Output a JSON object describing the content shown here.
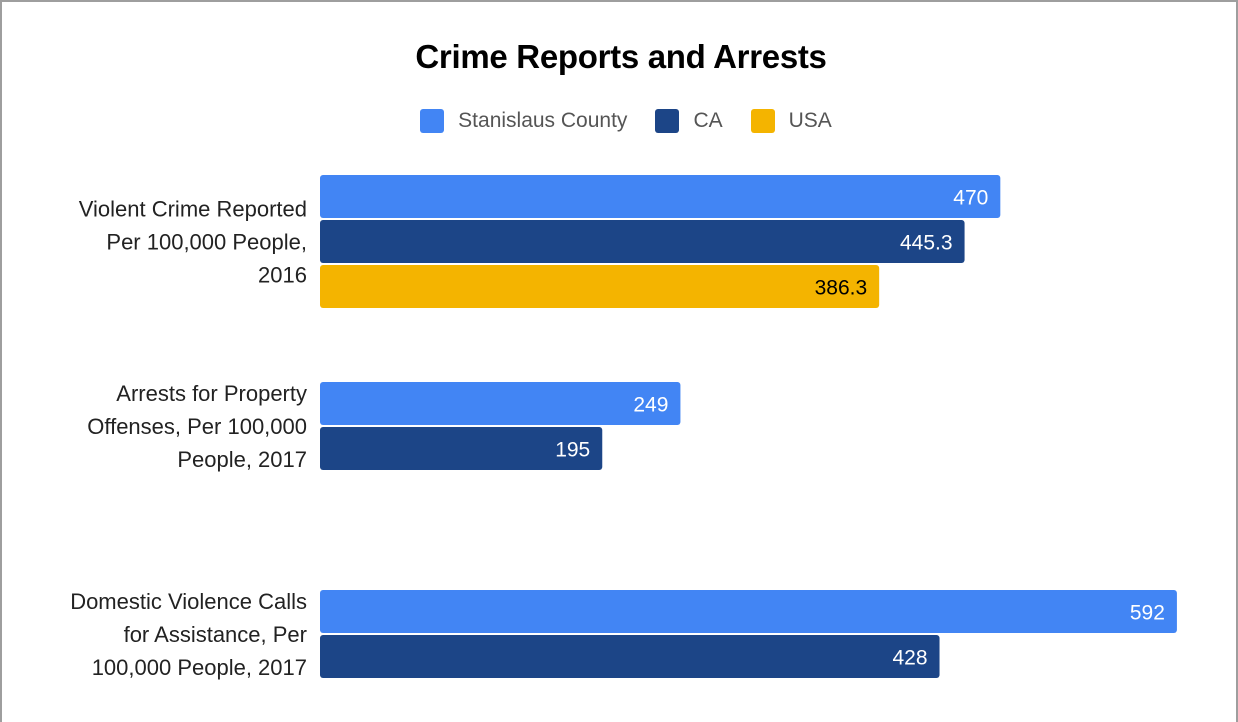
{
  "chart_data": {
    "type": "bar",
    "orientation": "horizontal",
    "title": "Crime Reports and Arrests",
    "legend_position": "top",
    "grid": false,
    "xlim": [
      0,
      600
    ],
    "categories": [
      [
        "Violent Crime Reported",
        "Per 100,000 People,",
        "2016"
      ],
      [
        "Arrests for Property",
        "Offenses, Per 100,000",
        "People, 2017"
      ],
      [
        "Domestic Violence Calls",
        "for Assistance, Per",
        "100,000 People, 2017"
      ]
    ],
    "series": [
      {
        "name": "Stanislaus County",
        "color": "#4285f4",
        "label_color": "#ffffff",
        "values": [
          470,
          249,
          592
        ],
        "value_labels": [
          "470",
          "249",
          "592"
        ]
      },
      {
        "name": "CA",
        "color": "#1c4587",
        "label_color": "#ffffff",
        "values": [
          445.3,
          195,
          428
        ],
        "value_labels": [
          "445.3",
          "195",
          "428"
        ]
      },
      {
        "name": "USA",
        "color": "#f4b400",
        "label_color": "#000000",
        "values": [
          386.3,
          null,
          null
        ],
        "value_labels": [
          "386.3",
          null,
          null
        ]
      }
    ]
  }
}
